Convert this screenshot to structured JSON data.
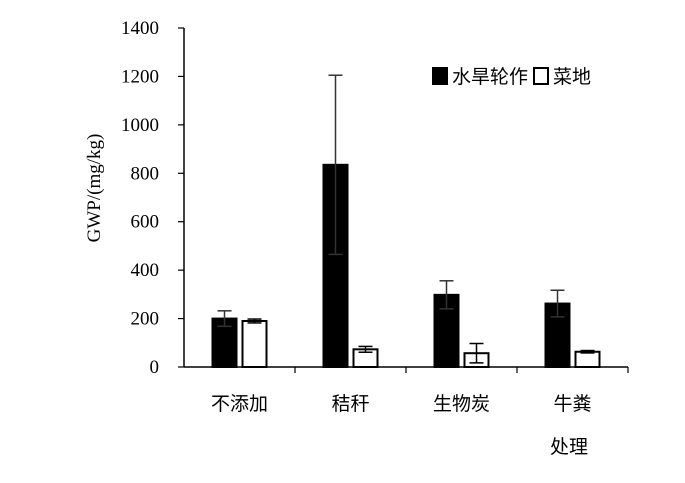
{
  "chart_data": {
    "type": "bar",
    "title": "",
    "xlabel": "处理",
    "ylabel": "GWP/(mg/kg)",
    "ylim": [
      0,
      1400
    ],
    "yticks": [
      0,
      200,
      400,
      600,
      800,
      1000,
      1200,
      1400
    ],
    "categories": [
      "不添加",
      "秸秆",
      "生物炭",
      "牛粪"
    ],
    "series": [
      {
        "name": "水旱轮作",
        "color": "#000000",
        "fill": "solid",
        "values": [
          200,
          835,
          298,
          262
        ],
        "error": [
          32,
          370,
          58,
          55
        ]
      },
      {
        "name": "菜地",
        "color": "#ffffff",
        "fill": "hollow",
        "values": [
          190,
          73,
          57,
          63
        ],
        "error": [
          8,
          12,
          40,
          5
        ]
      }
    ],
    "legend_position": "top-right",
    "grid": false
  }
}
